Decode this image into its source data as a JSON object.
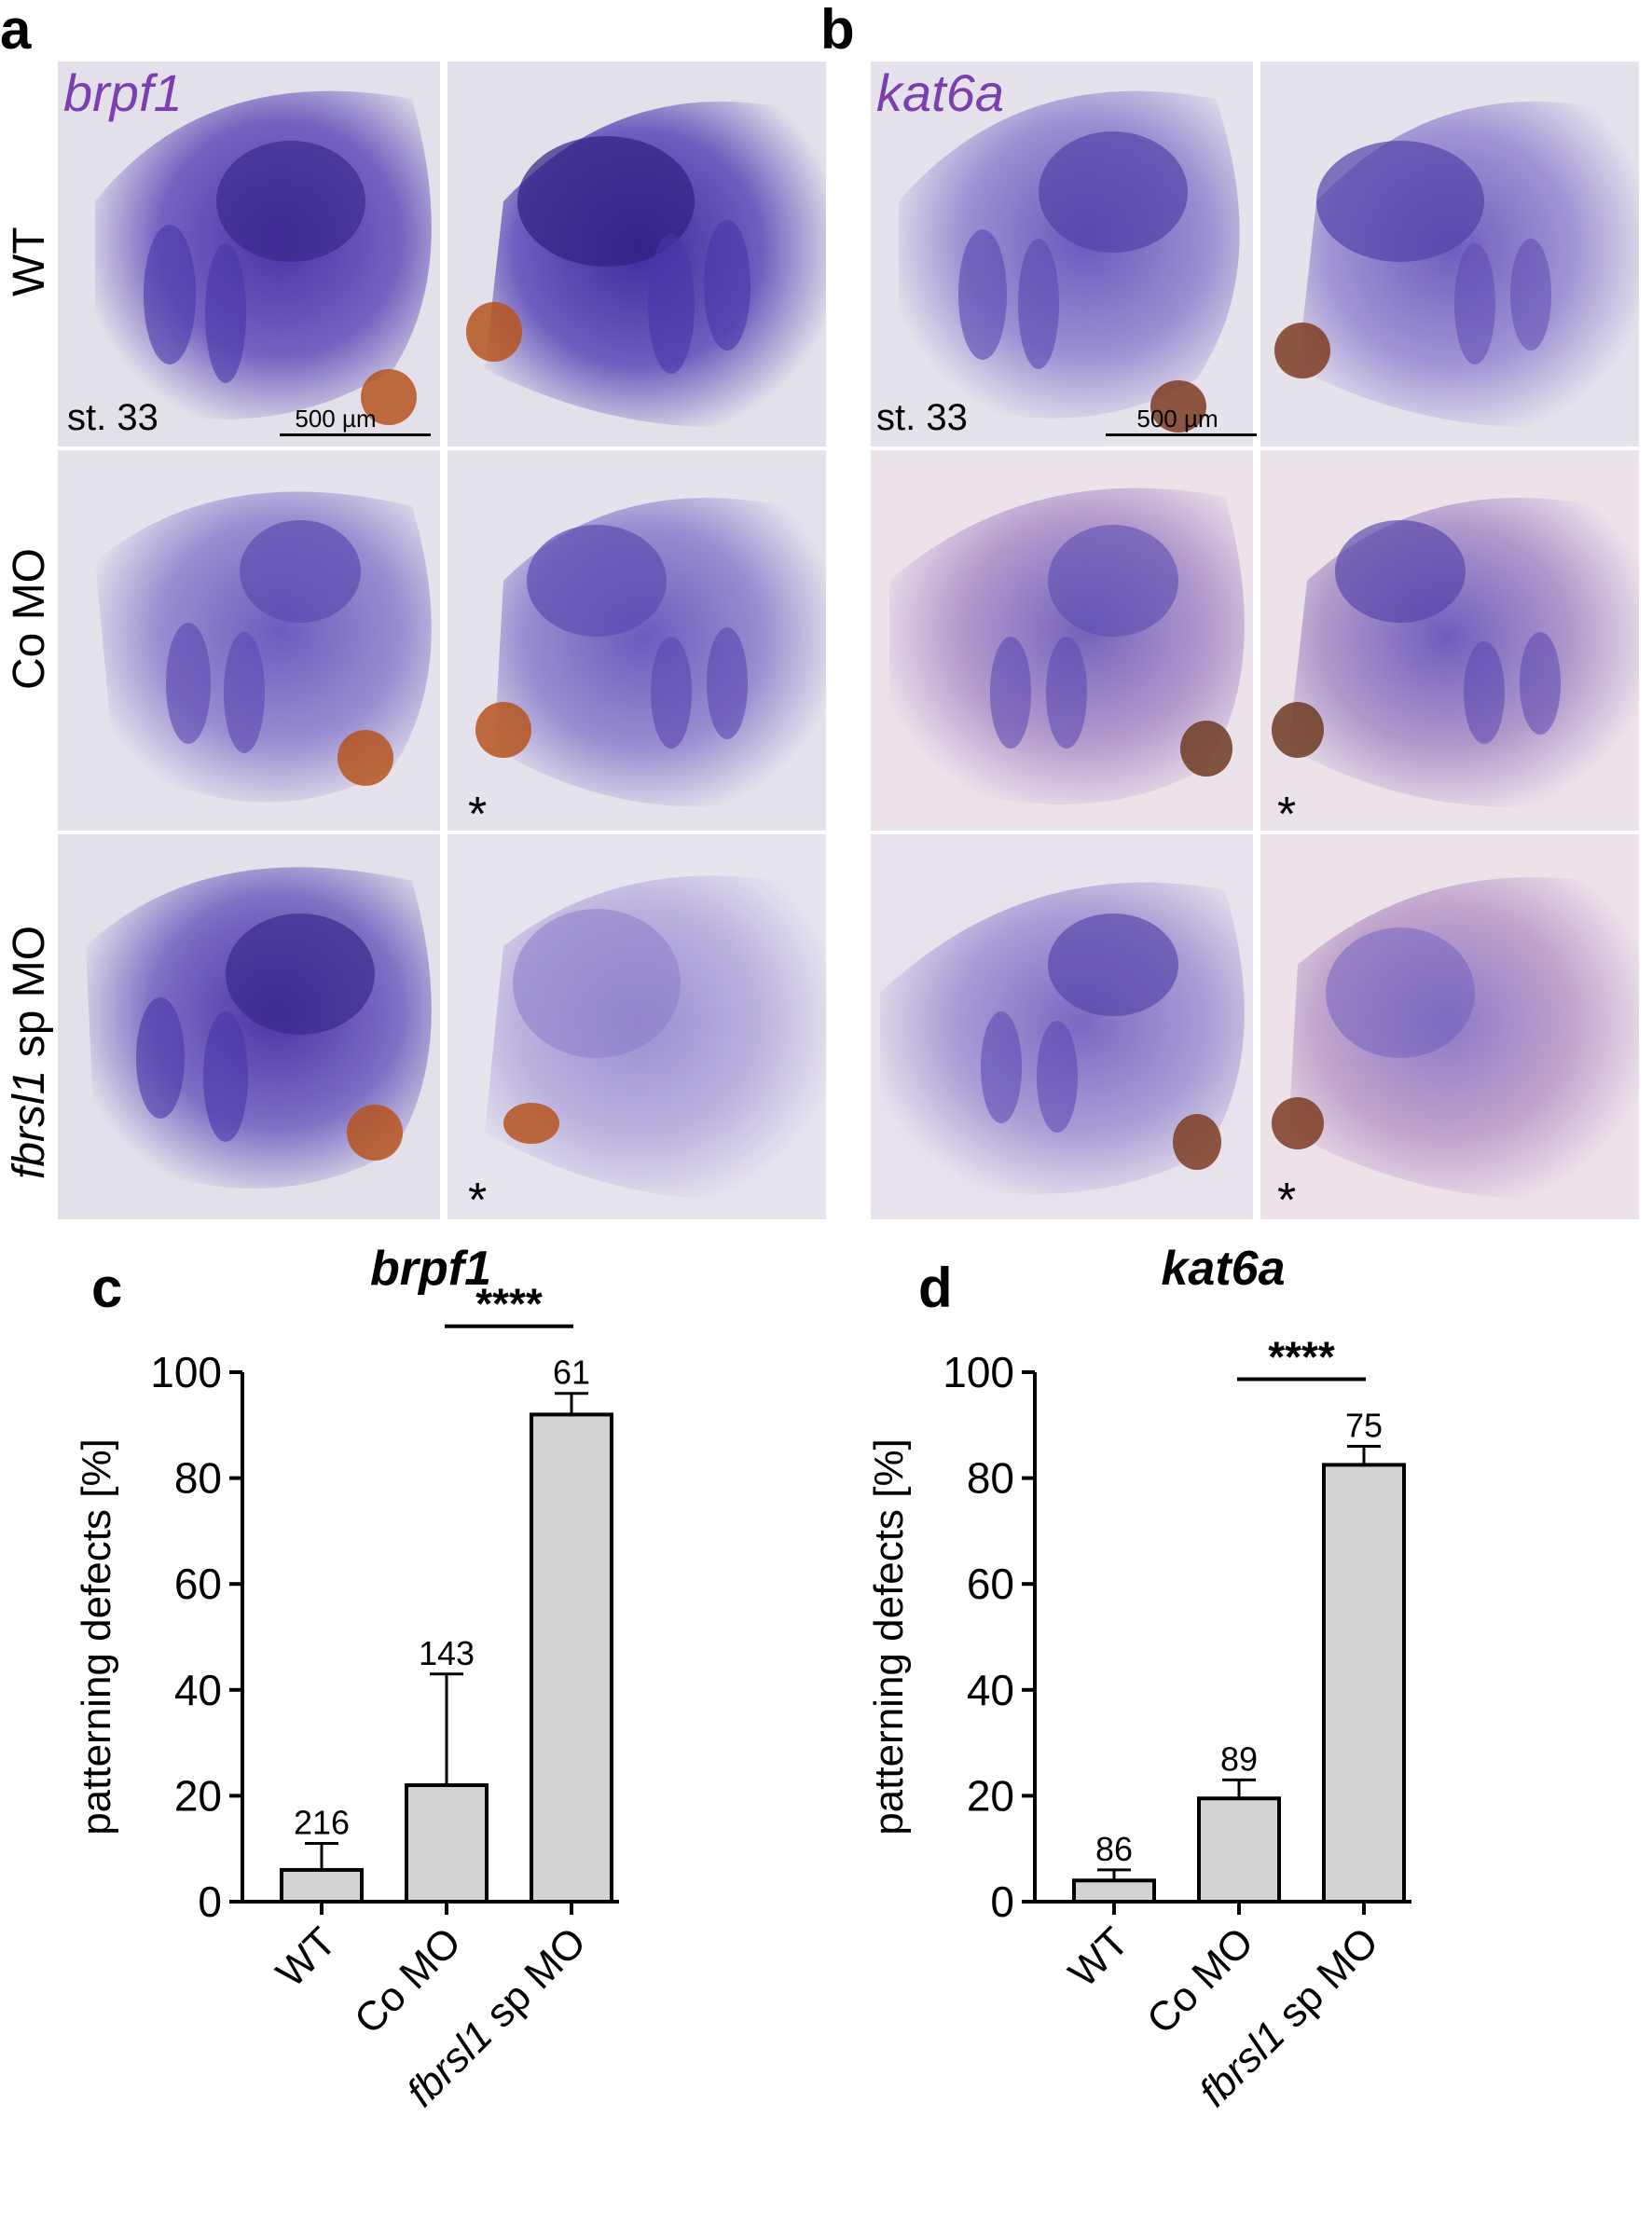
{
  "panels": {
    "a": {
      "letter": "a",
      "gene": "brpf1",
      "stage": "st. 33",
      "scale": "500 µm"
    },
    "b": {
      "letter": "b",
      "gene": "kat6a",
      "stage": "st. 33",
      "scale": "500 µm"
    },
    "c": {
      "letter": "c"
    },
    "d": {
      "letter": "d"
    }
  },
  "row_labels": {
    "wt": "WT",
    "co": "Co MO",
    "fb_italic": "fbrsl1",
    "fb_rest": " sp MO"
  },
  "asterisk": "*",
  "colors": {
    "stain": "#5b3db0",
    "bar_fill": "#d3d3d3",
    "pigment": "#b5531f",
    "gene_label": "#7a3fb0"
  },
  "chart_data": [
    {
      "type": "bar",
      "title": "brpf1",
      "ylabel": "patterning defects [%]",
      "categories": [
        "WT",
        "Co MO",
        "fbrsl1 sp MO"
      ],
      "category_italic_part": [
        "",
        "",
        "fbrsl1"
      ],
      "values": [
        6,
        22,
        92
      ],
      "error_upper": [
        11,
        43,
        96
      ],
      "n_labels": [
        "216",
        "143",
        "61"
      ],
      "significance": {
        "label": "****",
        "between": [
          1,
          2
        ]
      },
      "ylim": [
        0,
        100
      ],
      "yticks": [
        0,
        20,
        40,
        60,
        80,
        100
      ],
      "grid": false
    },
    {
      "type": "bar",
      "title": "kat6a",
      "ylabel": "patterning defects [%]",
      "categories": [
        "WT",
        "Co MO",
        "fbrsl1 sp MO"
      ],
      "category_italic_part": [
        "",
        "",
        "fbrsl1"
      ],
      "values": [
        4,
        19.5,
        82.5
      ],
      "error_upper": [
        6,
        23,
        86
      ],
      "n_labels": [
        "86",
        "89",
        "75"
      ],
      "significance": {
        "label": "****",
        "between": [
          1,
          2
        ]
      },
      "ylim": [
        0,
        100
      ],
      "yticks": [
        0,
        20,
        40,
        60,
        80,
        100
      ],
      "grid": false
    }
  ]
}
